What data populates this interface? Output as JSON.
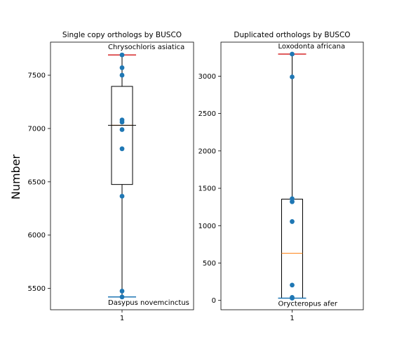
{
  "figure": {
    "ylabel": "Number"
  },
  "chart_data": [
    {
      "type": "box",
      "title": "Single copy orthologs by BUSCO",
      "categories": [
        "1"
      ],
      "xticks": [
        "1"
      ],
      "ylim": [
        5300,
        7810
      ],
      "yticks": [
        5500,
        6000,
        6500,
        7000,
        7500
      ],
      "box": {
        "whisker_low": 5420,
        "q1": 6475,
        "median": 7030,
        "q3": 7395,
        "whisker_high": 7690
      },
      "points": [
        5420,
        5475,
        6365,
        6810,
        6990,
        7060,
        7080,
        7500,
        7570,
        7690
      ],
      "max_line": {
        "value": 7690,
        "label": "Chrysochloris asiatica",
        "color": "#d62728"
      },
      "min_line": {
        "value": 5420,
        "label": "Dasypus novemcinctus",
        "color": "#1f77b4"
      },
      "colors": {
        "points": "#1f77b4",
        "median": "#ff7f0e",
        "median_overlay": "#000000"
      }
    },
    {
      "type": "box",
      "title": "Duplicated orthologs by BUSCO",
      "categories": [
        "1"
      ],
      "xticks": [
        "1"
      ],
      "ylim": [
        -125,
        3455
      ],
      "yticks": [
        0,
        500,
        1000,
        1500,
        2000,
        2500,
        3000
      ],
      "box": {
        "whisker_low": 30,
        "q1": 30,
        "median": 630,
        "q3": 1355,
        "whisker_high": 3295
      },
      "points": [
        30,
        40,
        205,
        1055,
        1320,
        1360,
        2990,
        3295
      ],
      "max_line": {
        "value": 3295,
        "label": "Loxodonta africana",
        "color": "#d62728"
      },
      "min_line": {
        "value": 30,
        "label": "Orycteropus afer",
        "color": "#1f77b4"
      },
      "colors": {
        "points": "#1f77b4",
        "median": "#ff7f0e",
        "median_overlay": null
      }
    }
  ]
}
